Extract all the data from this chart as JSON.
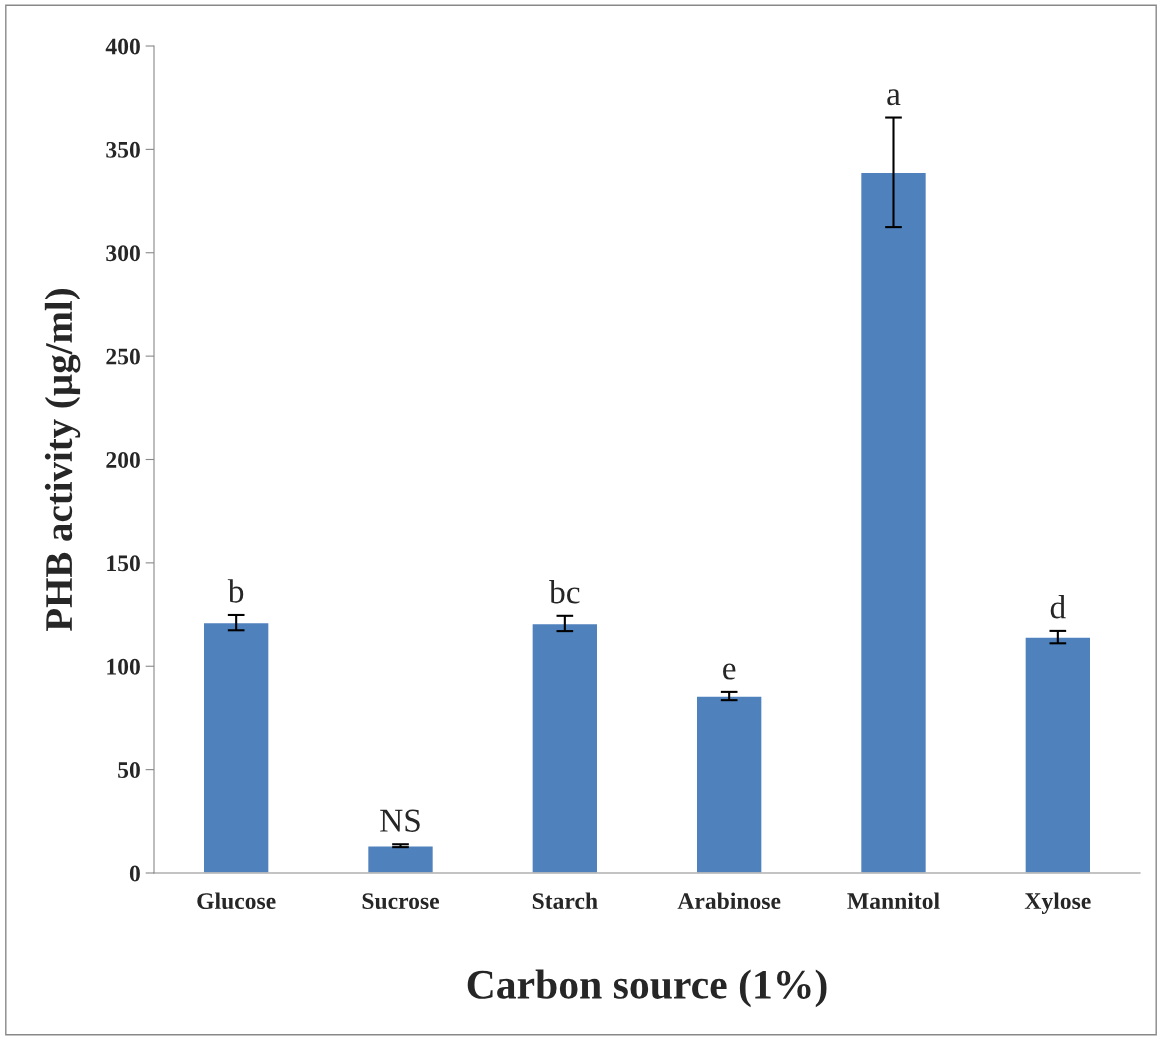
{
  "chart_data": {
    "type": "bar",
    "xlabel": "Carbon source (1%)",
    "ylabel": "PHB activity (µg/ml)",
    "categories": [
      "Glucose",
      "Sucrose",
      "Starch",
      "Arabinose",
      "Mannitol",
      "Xylose"
    ],
    "values": [
      121.1,
      13.2,
      120.7,
      85.6,
      338.9,
      114.1
    ],
    "errors": [
      3.7,
      0.7,
      3.7,
      2,
      26.5,
      3
    ],
    "color": "#4f81bd",
    "ylim": [
      0,
      400
    ],
    "yticks": [
      0,
      50,
      100,
      150,
      200,
      250,
      300,
      350,
      400
    ],
    "grid": false,
    "annotations": [
      "b",
      "NS",
      "bc",
      "e",
      "a",
      "d"
    ]
  }
}
